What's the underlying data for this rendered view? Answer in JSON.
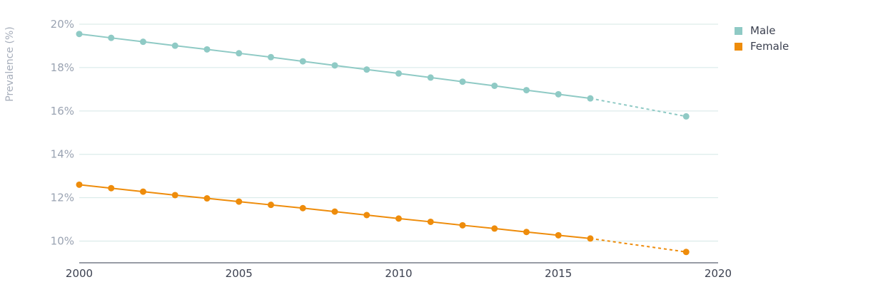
{
  "chart_data": {
    "type": "line",
    "ylabel": "Prevalence (%)",
    "xlabel": "",
    "xlim": [
      2000,
      2020
    ],
    "ylim": [
      9,
      20
    ],
    "x_ticks": [
      2000,
      2005,
      2010,
      2015,
      2020
    ],
    "x_tick_labels": [
      "2000",
      "2005",
      "2010",
      "2015",
      "2020"
    ],
    "y_ticks": [
      10,
      12,
      14,
      16,
      18,
      20
    ],
    "y_tick_labels": [
      "10%",
      "12%",
      "14%",
      "16%",
      "18%",
      "20%"
    ],
    "grid": true,
    "legend_position": "top-right",
    "series": [
      {
        "name": "Male",
        "color": "#8fcac5",
        "x": [
          2000,
          2001,
          2002,
          2003,
          2004,
          2005,
          2006,
          2007,
          2008,
          2009,
          2010,
          2011,
          2012,
          2013,
          2014,
          2015,
          2016,
          2019
        ],
        "y": [
          19.55,
          19.37,
          19.19,
          19.01,
          18.84,
          18.66,
          18.48,
          18.29,
          18.1,
          17.91,
          17.73,
          17.54,
          17.35,
          17.16,
          16.96,
          16.77,
          16.58,
          15.75
        ],
        "projected_from_index": 16
      },
      {
        "name": "Female",
        "color": "#ee8c0b",
        "x": [
          2000,
          2001,
          2002,
          2003,
          2004,
          2005,
          2006,
          2007,
          2008,
          2009,
          2010,
          2011,
          2012,
          2013,
          2014,
          2015,
          2016,
          2019
        ],
        "y": [
          12.6,
          12.44,
          12.28,
          12.12,
          11.97,
          11.82,
          11.67,
          11.52,
          11.36,
          11.2,
          11.04,
          10.89,
          10.73,
          10.58,
          10.42,
          10.27,
          10.12,
          9.5
        ],
        "projected_from_index": 16
      }
    ]
  }
}
